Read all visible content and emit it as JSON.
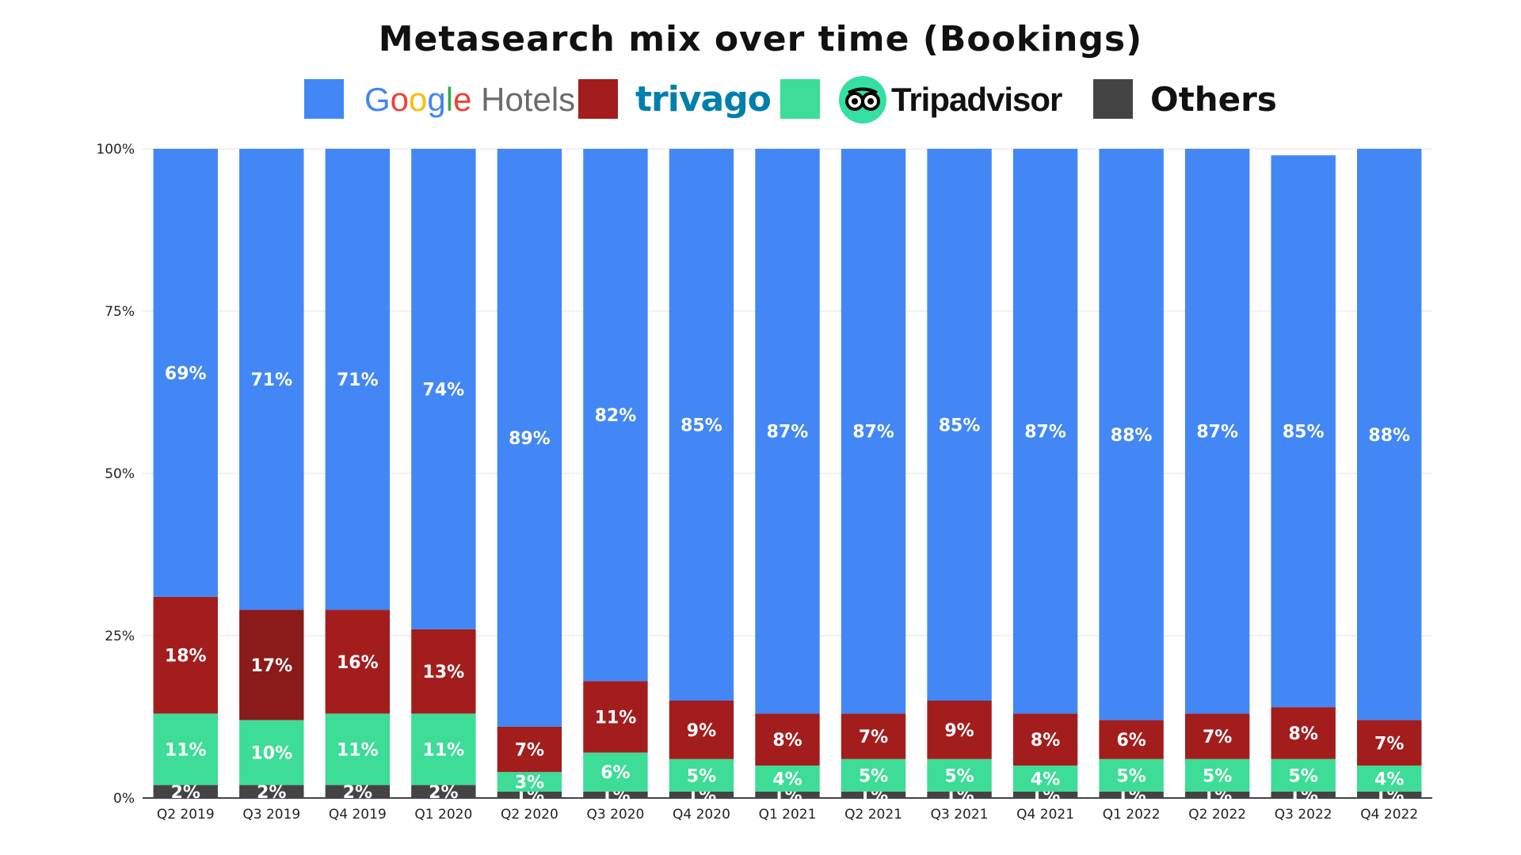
{
  "chart_data": {
    "type": "bar",
    "stacked": true,
    "title": "Metasearch mix over time  (Bookings)",
    "categories": [
      "Q2 2019",
      "Q3 2019",
      "Q4 2019",
      "Q1 2020",
      "Q2 2020",
      "Q3 2020",
      "Q4 2020",
      "Q1 2021",
      "Q2 2021",
      "Q3 2021",
      "Q4 2021",
      "Q1 2022",
      "Q2 2022",
      "Q3 2022",
      "Q4 2022"
    ],
    "y_ticks": [
      "0%",
      "25%",
      "50%",
      "75%",
      "100%"
    ],
    "ylim": [
      0,
      100
    ],
    "grid": true,
    "legend_position": "top",
    "series": [
      {
        "name": "Others",
        "color": "#444444",
        "values": [
          2,
          2,
          2,
          2,
          1,
          1,
          1,
          1,
          1,
          1,
          1,
          1,
          1,
          1,
          1
        ]
      },
      {
        "name": "Tripadvisor",
        "color": "#3ddc97",
        "values": [
          11,
          10,
          11,
          11,
          3,
          6,
          5,
          4,
          5,
          5,
          4,
          5,
          5,
          5,
          4
        ]
      },
      {
        "name": "trivago",
        "color": "#a31d1d",
        "values": [
          18,
          17,
          16,
          13,
          7,
          11,
          9,
          8,
          7,
          9,
          8,
          6,
          7,
          8,
          7
        ]
      },
      {
        "name": "Google Hotels",
        "color": "#4287f5",
        "values": [
          69,
          71,
          71,
          74,
          89,
          82,
          85,
          87,
          87,
          85,
          87,
          88,
          87,
          85,
          88
        ]
      }
    ],
    "highlight": {
      "series": "trivago",
      "category": "Q3 2019",
      "color": "#8b1a1a"
    }
  },
  "legend": {
    "google": {
      "g1": "G",
      "o1": "o",
      "o2": "o",
      "g2": "g",
      "l": "l",
      "e": "e",
      "hotels": " Hotels",
      "colors": [
        "#4285f4",
        "#ea4335",
        "#fbbc05",
        "#4285f4",
        "#34a853",
        "#ea4335"
      ]
    },
    "trivago": "trivago",
    "tripadvisor": "Tripadvisor",
    "others": "Others"
  }
}
